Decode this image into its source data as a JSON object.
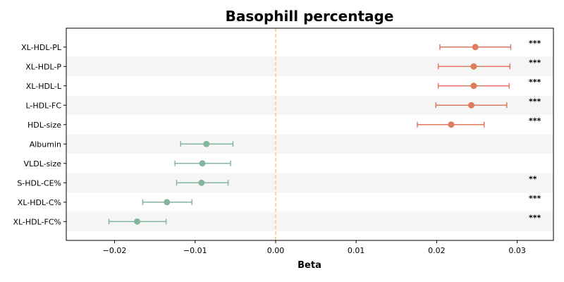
{
  "chart_data": {
    "type": "forest",
    "title": "Basophill percentage",
    "xlabel": "Beta",
    "xlim": [
      -0.026,
      0.0345
    ],
    "xticks": [
      -0.02,
      -0.01,
      0.0,
      0.01,
      0.02,
      0.03
    ],
    "xtick_labels": [
      "−0.02",
      "−0.01",
      "0.00",
      "0.01",
      "0.02",
      "0.03"
    ],
    "reference_line": 0,
    "colors": {
      "positive": "#de7a5f",
      "negative": "#84b59d",
      "reference": "#f4c98f",
      "band": "#f5f5f5"
    },
    "rows": [
      {
        "label": "XL-HDL-PL",
        "beta": 0.0248,
        "ci_low": 0.0204,
        "ci_high": 0.0292,
        "sig": "***"
      },
      {
        "label": "XL-HDL-P",
        "beta": 0.0246,
        "ci_low": 0.0202,
        "ci_high": 0.0291,
        "sig": "***"
      },
      {
        "label": "XL-HDL-L",
        "beta": 0.0246,
        "ci_low": 0.0202,
        "ci_high": 0.029,
        "sig": "***"
      },
      {
        "label": "L-HDL-FC",
        "beta": 0.0243,
        "ci_low": 0.0199,
        "ci_high": 0.0287,
        "sig": "***"
      },
      {
        "label": "HDL-size",
        "beta": 0.0218,
        "ci_low": 0.0176,
        "ci_high": 0.0259,
        "sig": "***"
      },
      {
        "label": "Albumin",
        "beta": -0.0086,
        "ci_low": -0.0118,
        "ci_high": -0.0053,
        "sig": ""
      },
      {
        "label": "VLDL-size",
        "beta": -0.0091,
        "ci_low": -0.0125,
        "ci_high": -0.0056,
        "sig": ""
      },
      {
        "label": "S-HDL-CE%",
        "beta": -0.0092,
        "ci_low": -0.0123,
        "ci_high": -0.0059,
        "sig": "**"
      },
      {
        "label": "XL-HDL-C%",
        "beta": -0.0135,
        "ci_low": -0.0165,
        "ci_high": -0.0104,
        "sig": "***"
      },
      {
        "label": "XL-HDL-FC%",
        "beta": -0.0172,
        "ci_low": -0.0207,
        "ci_high": -0.0136,
        "sig": "***"
      }
    ]
  }
}
